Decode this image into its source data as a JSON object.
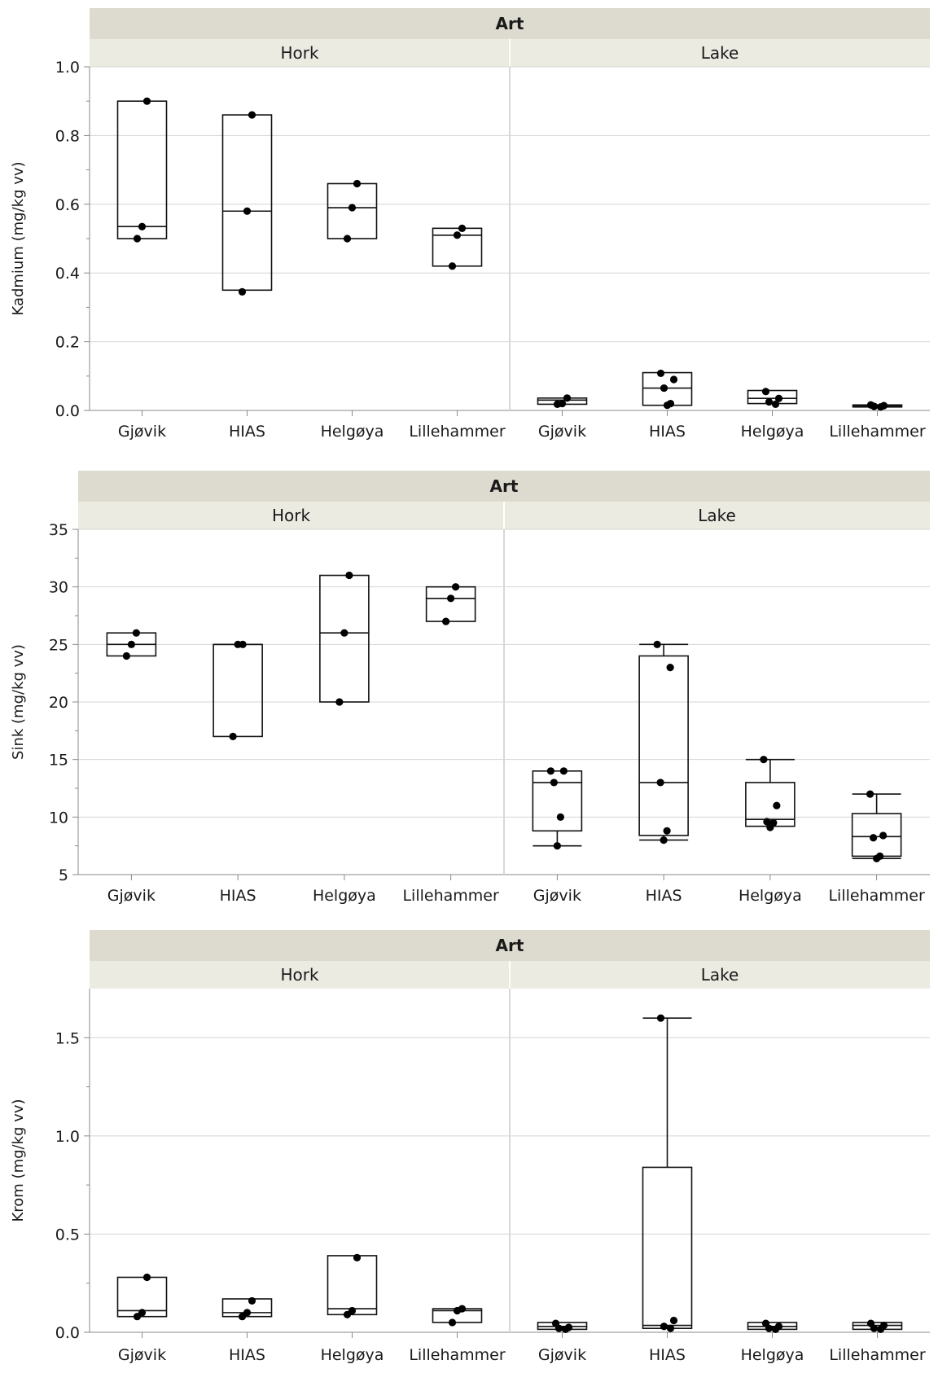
{
  "chart_data": [
    {
      "type": "box",
      "group_header": "Art",
      "facets": [
        "Hork",
        "Lake"
      ],
      "categories": [
        "Gjøvik",
        "HIAS",
        "Helgøya",
        "Lillehammer"
      ],
      "ylabel": "Kadmium (mg/kg vv)",
      "ylim": [
        0,
        1.0
      ],
      "yticks": [
        0.0,
        0.2,
        0.4,
        0.6,
        0.8,
        1.0
      ],
      "ytick_labels": [
        "0.0",
        "0.2",
        "0.4",
        "0.6",
        "0.8",
        "1.0"
      ],
      "grid": true,
      "data": {
        "Hork": [
          {
            "category": "Gjøvik",
            "box": {
              "q1": 0.5,
              "median": 0.535,
              "q3": 0.9
            },
            "points": [
              0.9,
              0.535,
              0.5
            ]
          },
          {
            "category": "HIAS",
            "box": {
              "q1": 0.35,
              "median": 0.58,
              "q3": 0.86
            },
            "points": [
              0.86,
              0.58,
              0.345
            ]
          },
          {
            "category": "Helgøya",
            "box": {
              "q1": 0.5,
              "median": 0.59,
              "q3": 0.66
            },
            "points": [
              0.66,
              0.59,
              0.5
            ]
          },
          {
            "category": "Lillehammer",
            "box": {
              "q1": 0.42,
              "median": 0.51,
              "q3": 0.53
            },
            "points": [
              0.53,
              0.51,
              0.42
            ]
          }
        ],
        "Lake": [
          {
            "category": "Gjøvik",
            "box": {
              "q1": 0.018,
              "median": 0.03,
              "q3": 0.036
            },
            "points": [
              0.036,
              0.02,
              0.018
            ]
          },
          {
            "category": "HIAS",
            "box": {
              "q1": 0.015,
              "median": 0.065,
              "q3": 0.11
            },
            "points": [
              0.108,
              0.09,
              0.065,
              0.02,
              0.015
            ]
          },
          {
            "category": "Helgøya",
            "box": {
              "q1": 0.02,
              "median": 0.035,
              "q3": 0.058
            },
            "points": [
              0.055,
              0.035,
              0.025,
              0.018
            ]
          },
          {
            "category": "Lillehammer",
            "box": {
              "q1": 0.01,
              "median": 0.013,
              "q3": 0.016
            },
            "points": [
              0.016,
              0.014,
              0.012,
              0.01
            ]
          }
        ]
      }
    },
    {
      "type": "box",
      "group_header": "Art",
      "facets": [
        "Hork",
        "Lake"
      ],
      "categories": [
        "Gjøvik",
        "HIAS",
        "Helgøya",
        "Lillehammer"
      ],
      "ylabel": "Sink (mg/kg vv)",
      "ylim": [
        5,
        35
      ],
      "yticks": [
        5,
        10,
        15,
        20,
        25,
        30,
        35
      ],
      "ytick_labels": [
        "5",
        "10",
        "15",
        "20",
        "25",
        "30",
        "35"
      ],
      "grid": true,
      "data": {
        "Hork": [
          {
            "category": "Gjøvik",
            "box": {
              "q1": 24,
              "median": 25,
              "q3": 26
            },
            "points": [
              26,
              25,
              24
            ]
          },
          {
            "category": "HIAS",
            "box": {
              "q1": 17,
              "median": 25,
              "q3": 25
            },
            "points": [
              25,
              25,
              17
            ]
          },
          {
            "category": "Helgøya",
            "box": {
              "q1": 20,
              "median": 26,
              "q3": 31
            },
            "points": [
              31,
              26,
              20
            ]
          },
          {
            "category": "Lillehammer",
            "box": {
              "q1": 27,
              "median": 29,
              "q3": 30
            },
            "points": [
              30,
              29,
              27
            ]
          }
        ],
        "Lake": [
          {
            "category": "Gjøvik",
            "box": {
              "q1": 8.8,
              "median": 13,
              "q3": 14,
              "whisker_low": 7.5,
              "whisker_high": 14
            },
            "points": [
              14,
              14,
              13,
              10,
              7.5
            ]
          },
          {
            "category": "HIAS",
            "box": {
              "q1": 8.4,
              "median": 13,
              "q3": 24,
              "whisker_low": 8,
              "whisker_high": 25
            },
            "points": [
              25,
              23,
              13,
              8.8,
              8
            ]
          },
          {
            "category": "Helgøya",
            "box": {
              "q1": 9.2,
              "median": 9.8,
              "q3": 13,
              "whisker_low": 9.2,
              "whisker_high": 15
            },
            "points": [
              15,
              11,
              9.6,
              9.5,
              9.1
            ]
          },
          {
            "category": "Lillehammer",
            "box": {
              "q1": 6.6,
              "median": 8.3,
              "q3": 10.3,
              "whisker_low": 6.4,
              "whisker_high": 12
            },
            "points": [
              12,
              8.4,
              8.2,
              6.6,
              6.4
            ]
          }
        ]
      }
    },
    {
      "type": "box",
      "group_header": "Art",
      "facets": [
        "Hork",
        "Lake"
      ],
      "categories": [
        "Gjøvik",
        "HIAS",
        "Helgøya",
        "Lillehammer"
      ],
      "ylabel": "Krom (mg/kg vv)",
      "ylim": [
        0,
        1.75
      ],
      "yticks": [
        0.0,
        0.5,
        1.0,
        1.5
      ],
      "ytick_labels": [
        "0.0",
        "0.5",
        "1.0",
        "1.5"
      ],
      "grid": true,
      "data": {
        "Hork": [
          {
            "category": "Gjøvik",
            "box": {
              "q1": 0.08,
              "median": 0.11,
              "q3": 0.28
            },
            "points": [
              0.28,
              0.1,
              0.08
            ]
          },
          {
            "category": "HIAS",
            "box": {
              "q1": 0.08,
              "median": 0.1,
              "q3": 0.17
            },
            "points": [
              0.16,
              0.1,
              0.08
            ]
          },
          {
            "category": "Helgøya",
            "box": {
              "q1": 0.09,
              "median": 0.12,
              "q3": 0.39
            },
            "points": [
              0.38,
              0.11,
              0.09
            ]
          },
          {
            "category": "Lillehammer",
            "box": {
              "q1": 0.05,
              "median": 0.11,
              "q3": 0.12
            },
            "points": [
              0.12,
              0.11,
              0.05
            ]
          }
        ],
        "Lake": [
          {
            "category": "Gjøvik",
            "box": {
              "q1": 0.015,
              "median": 0.03,
              "q3": 0.05
            },
            "points": [
              0.045,
              0.025,
              0.02,
              0.015
            ]
          },
          {
            "category": "HIAS",
            "box": {
              "q1": 0.02,
              "median": 0.035,
              "q3": 0.84,
              "whisker_low": 0.02,
              "whisker_high": 1.6
            },
            "points": [
              1.6,
              0.06,
              0.03,
              0.02
            ]
          },
          {
            "category": "Helgøya",
            "box": {
              "q1": 0.015,
              "median": 0.03,
              "q3": 0.05
            },
            "points": [
              0.045,
              0.03,
              0.02,
              0.015
            ]
          },
          {
            "category": "Lillehammer",
            "box": {
              "q1": 0.015,
              "median": 0.035,
              "q3": 0.05
            },
            "points": [
              0.045,
              0.035,
              0.02,
              0.015
            ]
          }
        ]
      }
    }
  ]
}
